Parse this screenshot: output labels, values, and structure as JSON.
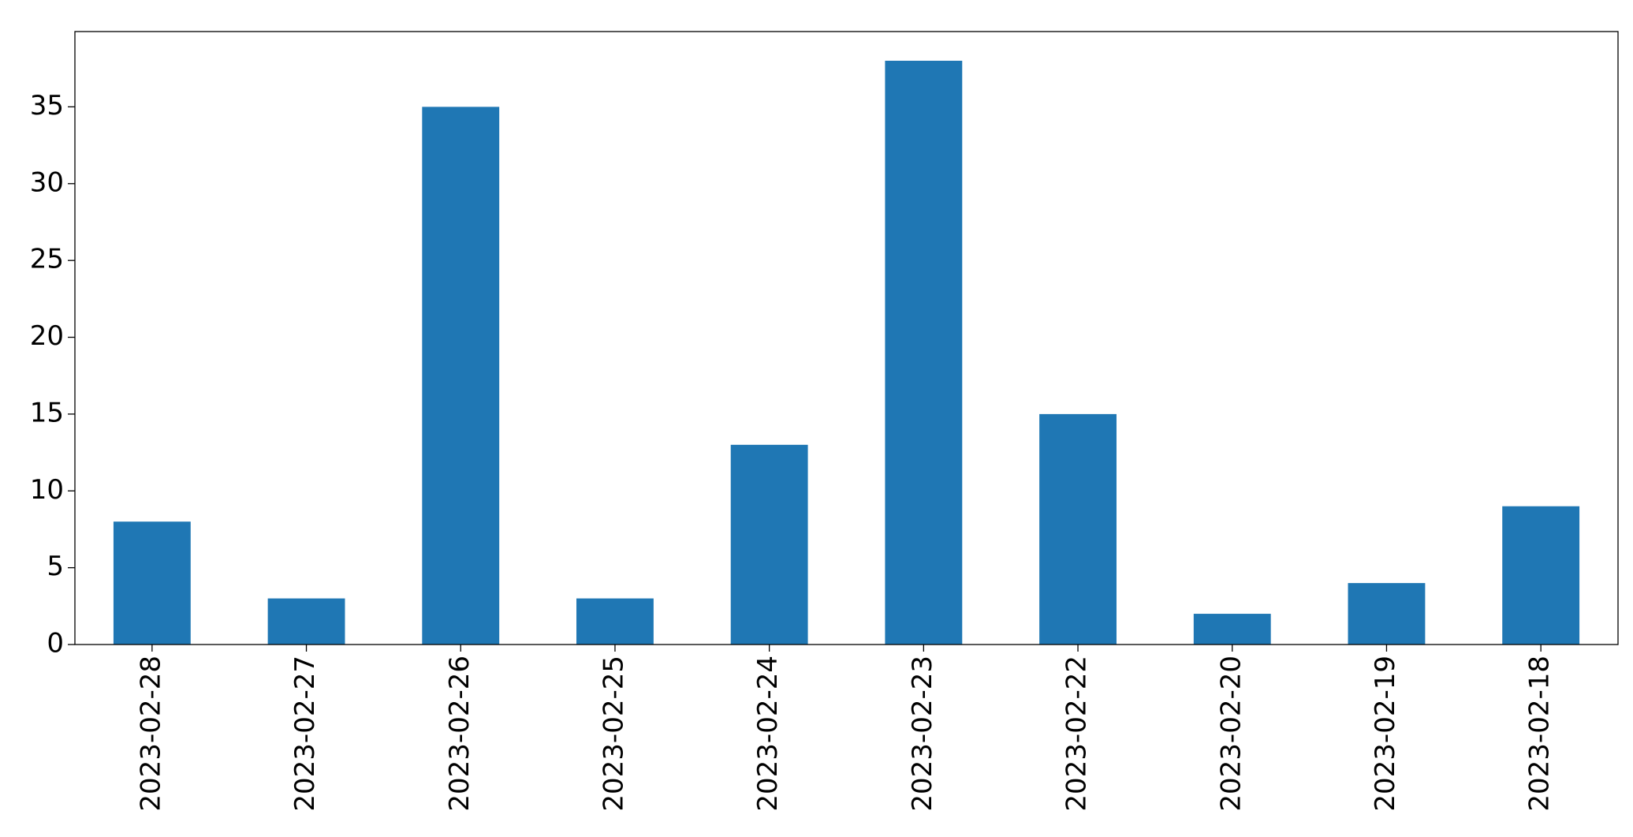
{
  "chart_data": {
    "type": "bar",
    "categories": [
      "2023-02-28",
      "2023-02-27",
      "2023-02-26",
      "2023-02-25",
      "2023-02-24",
      "2023-02-23",
      "2023-02-22",
      "2023-02-20",
      "2023-02-19",
      "2023-02-18"
    ],
    "values": [
      8,
      3,
      35,
      3,
      13,
      38,
      15,
      2,
      4,
      9
    ],
    "color": "#1f77b4",
    "ylim": [
      0,
      39.9
    ],
    "yticks": [
      0,
      5,
      10,
      15,
      20,
      25,
      30,
      35
    ],
    "grid": false
  }
}
